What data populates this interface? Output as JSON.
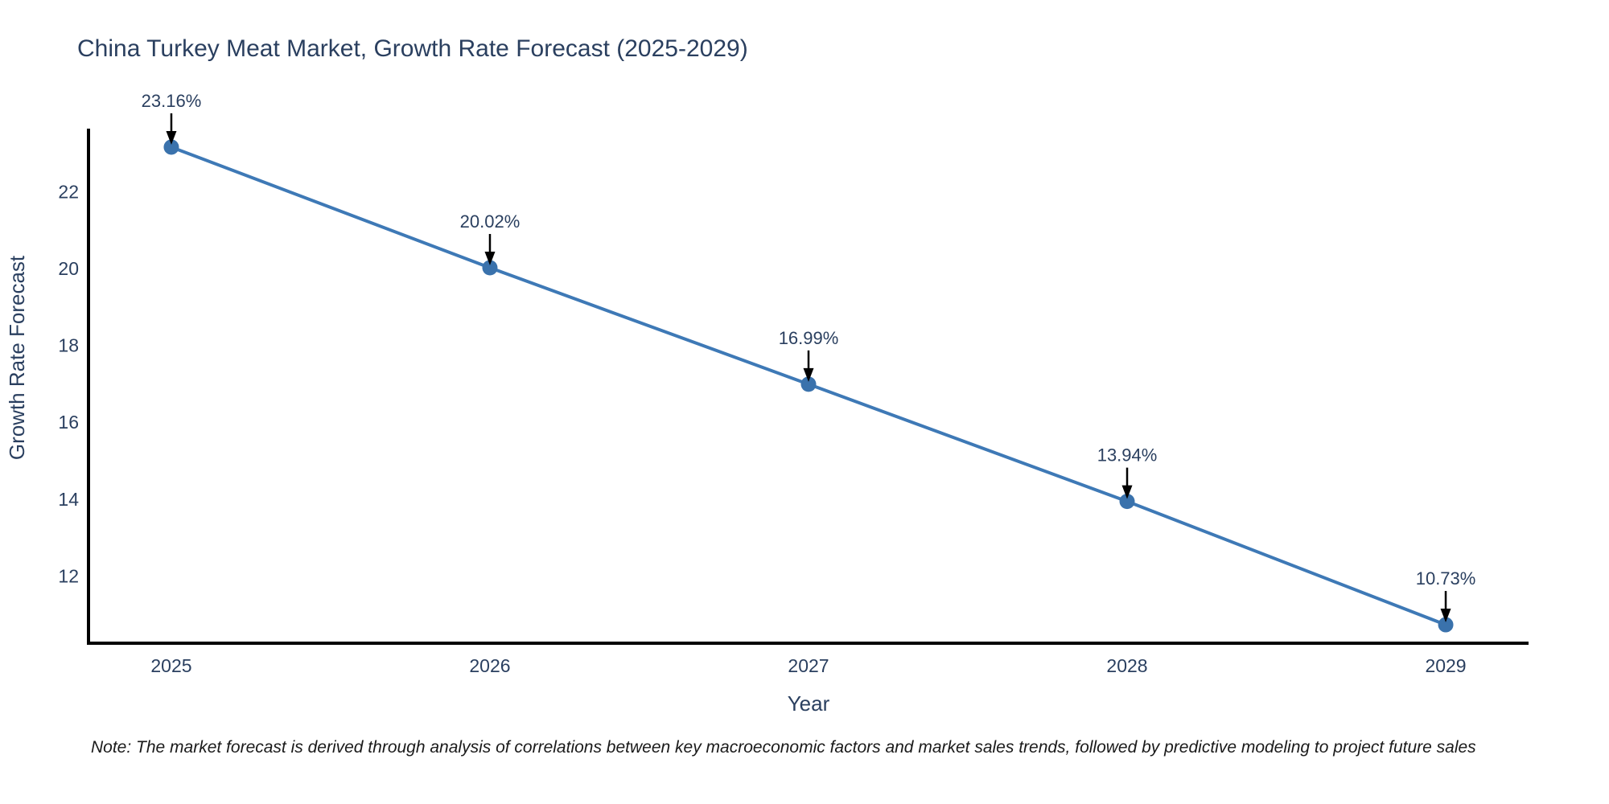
{
  "page": {
    "background_color": "#ffffff"
  },
  "note": {
    "text": "Note: The market forecast is derived through analysis of correlations between key macroeconomic factors and market sales trends, followed by predictive modeling to project future sales"
  },
  "chart_data": {
    "type": "line",
    "title": "China Turkey Meat Market, Growth Rate Forecast (2025-2029)",
    "xlabel": "Year",
    "ylabel": "Growth Rate Forecast",
    "x": [
      2025,
      2026,
      2027,
      2028,
      2029
    ],
    "values": [
      23.16,
      20.02,
      16.99,
      13.94,
      10.73
    ],
    "point_labels": [
      "23.16%",
      "20.02%",
      "16.99%",
      "13.94%",
      "10.73%"
    ],
    "xticks": [
      2025,
      2026,
      2027,
      2028,
      2029
    ],
    "yticks": [
      12,
      14,
      16,
      18,
      20,
      22
    ],
    "xlim": [
      2024.74,
      2029.26
    ],
    "ylim": [
      10.25,
      23.64
    ],
    "grid": false,
    "legend_position": "none",
    "colors": {
      "line": "#3e79b6",
      "marker": "#3a72ac",
      "axis": "#000000",
      "text": "#2a3f5f",
      "annotation_arrow": "#000000"
    }
  }
}
